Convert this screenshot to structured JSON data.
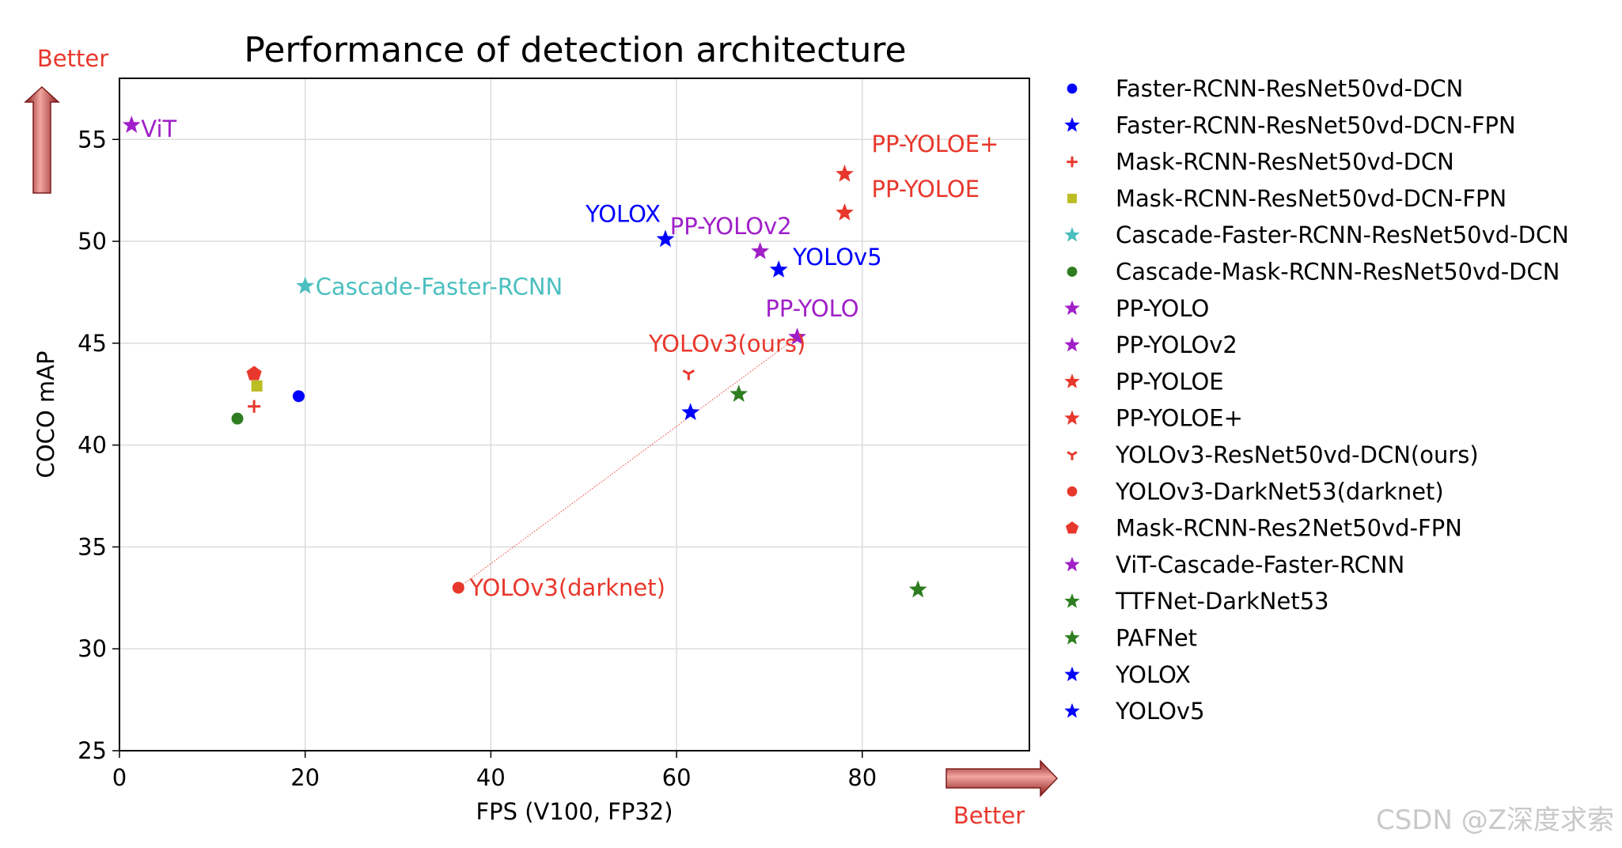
{
  "chart_data": {
    "type": "scatter",
    "title": "Performance of detection architecture",
    "xlabel": "FPS (V100, FP32)",
    "ylabel": "COCO mAP",
    "xlim": [
      0,
      98
    ],
    "ylim": [
      25,
      58
    ],
    "xticks": [
      0,
      20,
      40,
      60,
      80
    ],
    "yticks": [
      25,
      30,
      35,
      40,
      45,
      50,
      55
    ],
    "grid": true,
    "legend_position": "outside-right",
    "better_y_label": "Better",
    "better_x_label": "Better",
    "series": [
      {
        "name": "Faster-RCNN-ResNet50vd-DCN",
        "marker": "circle",
        "color": "#0000ff",
        "x": 19.3,
        "y": 42.4
      },
      {
        "name": "Faster-RCNN-ResNet50vd-DCN-FPN",
        "marker": "star",
        "color": "#0000ff",
        "x": 61.5,
        "y": 41.6
      },
      {
        "name": "Mask-RCNN-ResNet50vd-DCN",
        "marker": "plus",
        "color": "#e8372c",
        "x": 14.5,
        "y": 41.9
      },
      {
        "name": "Mask-RCNN-ResNet50vd-DCN-FPN",
        "marker": "square",
        "color": "#bcbd22",
        "x": 14.8,
        "y": 42.9
      },
      {
        "name": "Cascade-Faster-RCNN-ResNet50vd-DCN",
        "marker": "star",
        "color": "#4bbfbf",
        "x": 20.0,
        "y": 47.8,
        "label": "Cascade-Faster-RCNN"
      },
      {
        "name": "Cascade-Mask-RCNN-ResNet50vd-DCN",
        "marker": "circle",
        "color": "#2e7d20",
        "x": 12.7,
        "y": 41.3
      },
      {
        "name": "PP-YOLO",
        "marker": "star",
        "color": "#a020c8",
        "x": 73.0,
        "y": 45.3,
        "label": "PP-YOLO"
      },
      {
        "name": "PP-YOLOv2",
        "marker": "star",
        "color": "#a020c8",
        "x": 69.0,
        "y": 49.5,
        "label": "PP-YOLOv2"
      },
      {
        "name": "PP-YOLOE",
        "marker": "star",
        "color": "#e8372c",
        "x": 78.1,
        "y": 51.4,
        "label": "PP-YOLOE"
      },
      {
        "name": "PP-YOLOE+",
        "marker": "star",
        "color": "#e8372c",
        "x": 78.1,
        "y": 53.3,
        "label": "PP-YOLOE+"
      },
      {
        "name": "YOLOv3-ResNet50vd-DCN(ours)",
        "marker": "tri_down",
        "color": "#e8372c",
        "x": 61.3,
        "y": 43.5,
        "label": "YOLOv3(ours)"
      },
      {
        "name": "YOLOv3-DarkNet53(darknet)",
        "marker": "circle",
        "color": "#e8372c",
        "x": 36.5,
        "y": 33.0,
        "label": "YOLOv3(darknet)"
      },
      {
        "name": "Mask-RCNN-Res2Net50vd-FPN",
        "marker": "pentagon",
        "color": "#e8372c",
        "x": 14.5,
        "y": 43.5
      },
      {
        "name": "ViT-Cascade-Faster-RCNN",
        "marker": "star",
        "color": "#a020c8",
        "x": 1.3,
        "y": 55.7,
        "label": "ViT"
      },
      {
        "name": "TTFNet-DarkNet53",
        "marker": "star",
        "color": "#2e7d20",
        "x": 86.0,
        "y": 32.9
      },
      {
        "name": "PAFNet",
        "marker": "star",
        "color": "#2e7d20",
        "x": 66.7,
        "y": 42.5
      },
      {
        "name": "YOLOX",
        "marker": "star",
        "color": "#0000ff",
        "x": 58.8,
        "y": 50.1,
        "label": "YOLOX"
      },
      {
        "name": "YOLOv5",
        "marker": "star",
        "color": "#0000ff",
        "x": 71.0,
        "y": 48.6,
        "label": "YOLOv5"
      }
    ],
    "annotations": [
      {
        "type": "dotted-line",
        "from": [
          36.5,
          33.0
        ],
        "to": [
          73.0,
          45.3
        ],
        "color": "#e8372c"
      }
    ]
  },
  "watermark": "CSDN @Z深度求索"
}
